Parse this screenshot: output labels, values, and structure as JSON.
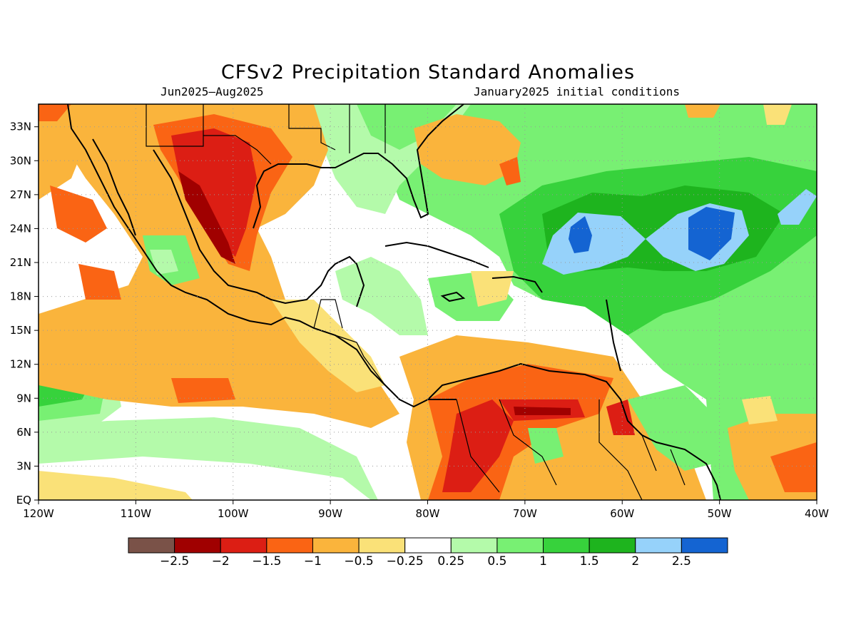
{
  "title": "CFSv2 Precipitation Standard Anomalies",
  "subtitle_left": "Jun2025–Aug2025",
  "subtitle_right": "January2025 initial conditions",
  "map": {
    "lon_range": [
      -120,
      -40
    ],
    "lat_range": [
      0,
      35
    ],
    "x_ticks": [
      "120W",
      "110W",
      "100W",
      "90W",
      "80W",
      "70W",
      "60W",
      "50W",
      "40W"
    ],
    "y_ticks": [
      "EQ",
      "3N",
      "6N",
      "9N",
      "12N",
      "15N",
      "18N",
      "21N",
      "24N",
      "27N",
      "30N",
      "33N"
    ],
    "grid": "dotted"
  },
  "colorbar": {
    "colors": [
      "#7a5248",
      "#a00000",
      "#dc1e14",
      "#fa6414",
      "#fab43c",
      "#fae178",
      "#ffffff",
      "#b4faaa",
      "#78f073",
      "#37d23c",
      "#1eb41e",
      "#96d2fa",
      "#1464d2"
    ],
    "labels": [
      "−2.5",
      "−2",
      "−1.5",
      "−1",
      "−0.5",
      "−0.25",
      "0.25",
      "0.5",
      "1",
      "1.5",
      "2",
      "2.5"
    ]
  }
}
